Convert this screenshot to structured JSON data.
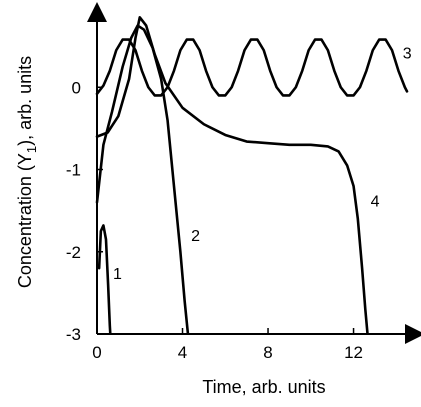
{
  "chart_data": {
    "type": "line",
    "title": "",
    "xlabel": "Time, arb. units",
    "ylabel_parts": [
      "Concentration (Y",
      "1",
      "), arb. units"
    ],
    "xlim": [
      0,
      14.5
    ],
    "ylim": [
      -3,
      1
    ],
    "xticks": [
      {
        "value": 0,
        "label": "0"
      },
      {
        "value": 4,
        "label": "4"
      },
      {
        "value": 8,
        "label": "8"
      },
      {
        "value": 12,
        "label": "12"
      }
    ],
    "yticks": [
      {
        "value": 0,
        "label": "0"
      },
      {
        "value": -1,
        "label": "-1"
      },
      {
        "value": -2,
        "label": "-2"
      },
      {
        "value": -3,
        "label": "-3"
      }
    ],
    "grid": false,
    "series": [
      {
        "name": "1",
        "label_at": [
          0.75,
          -2.33
        ],
        "points": [
          [
            0.1,
            -2.2
          ],
          [
            0.18,
            -1.75
          ],
          [
            0.3,
            -1.68
          ],
          [
            0.42,
            -1.85
          ],
          [
            0.52,
            -2.4
          ],
          [
            0.6,
            -2.9
          ],
          [
            0.62,
            -2.99
          ]
        ]
      },
      {
        "name": "2",
        "label_at": [
          4.4,
          -1.87
        ],
        "points": [
          [
            0,
            -1.4
          ],
          [
            0.3,
            -0.7
          ],
          [
            0.7,
            -0.3
          ],
          [
            1.2,
            0.25
          ],
          [
            1.6,
            0.6
          ],
          [
            1.9,
            0.75
          ],
          [
            2.2,
            0.7
          ],
          [
            2.6,
            0.48
          ],
          [
            3.0,
            0.1
          ],
          [
            3.3,
            -0.4
          ],
          [
            3.6,
            -1.2
          ],
          [
            3.9,
            -2.0
          ],
          [
            4.1,
            -2.6
          ],
          [
            4.25,
            -2.99
          ]
        ]
      },
      {
        "name": "3",
        "label_at": [
          14.3,
          0.35
        ],
        "points": [
          [
            0,
            -0.08
          ],
          [
            0.3,
            0.02
          ],
          [
            0.6,
            0.2
          ],
          [
            0.9,
            0.45
          ],
          [
            1.2,
            0.58
          ],
          [
            1.5,
            0.58
          ],
          [
            1.8,
            0.45
          ],
          [
            2.1,
            0.2
          ],
          [
            2.4,
            0.0
          ],
          [
            2.7,
            -0.1
          ],
          [
            3.0,
            -0.1
          ],
          [
            3.3,
            0.0
          ],
          [
            3.6,
            0.2
          ],
          [
            3.9,
            0.45
          ],
          [
            4.2,
            0.58
          ],
          [
            4.5,
            0.58
          ],
          [
            4.8,
            0.45
          ],
          [
            5.1,
            0.2
          ],
          [
            5.4,
            0.0
          ],
          [
            5.7,
            -0.1
          ],
          [
            6.0,
            -0.1
          ],
          [
            6.3,
            0.0
          ],
          [
            6.6,
            0.2
          ],
          [
            6.9,
            0.45
          ],
          [
            7.2,
            0.58
          ],
          [
            7.5,
            0.58
          ],
          [
            7.8,
            0.45
          ],
          [
            8.1,
            0.2
          ],
          [
            8.4,
            0.0
          ],
          [
            8.7,
            -0.1
          ],
          [
            9.0,
            -0.1
          ],
          [
            9.3,
            0.0
          ],
          [
            9.6,
            0.2
          ],
          [
            9.9,
            0.45
          ],
          [
            10.2,
            0.58
          ],
          [
            10.5,
            0.58
          ],
          [
            10.8,
            0.45
          ],
          [
            11.1,
            0.2
          ],
          [
            11.4,
            0.0
          ],
          [
            11.7,
            -0.1
          ],
          [
            12.0,
            -0.1
          ],
          [
            12.3,
            0.0
          ],
          [
            12.6,
            0.2
          ],
          [
            12.9,
            0.45
          ],
          [
            13.2,
            0.58
          ],
          [
            13.5,
            0.58
          ],
          [
            13.8,
            0.45
          ],
          [
            14.1,
            0.2
          ],
          [
            14.4,
            0.0
          ],
          [
            14.5,
            -0.05
          ]
        ]
      },
      {
        "name": "4",
        "label_at": [
          12.8,
          -1.45
        ],
        "points": [
          [
            0,
            -0.6
          ],
          [
            0.5,
            -0.55
          ],
          [
            1.0,
            -0.35
          ],
          [
            1.5,
            0.1
          ],
          [
            1.8,
            0.6
          ],
          [
            2.0,
            0.85
          ],
          [
            2.3,
            0.75
          ],
          [
            2.7,
            0.4
          ],
          [
            3.2,
            0.05
          ],
          [
            4.0,
            -0.25
          ],
          [
            5.0,
            -0.45
          ],
          [
            6.0,
            -0.58
          ],
          [
            7.0,
            -0.66
          ],
          [
            8.0,
            -0.68
          ],
          [
            9.0,
            -0.7
          ],
          [
            10.0,
            -0.7
          ],
          [
            10.8,
            -0.72
          ],
          [
            11.3,
            -0.78
          ],
          [
            11.7,
            -0.95
          ],
          [
            12.0,
            -1.2
          ],
          [
            12.2,
            -1.6
          ],
          [
            12.4,
            -2.2
          ],
          [
            12.55,
            -2.7
          ],
          [
            12.65,
            -2.99
          ]
        ]
      }
    ]
  }
}
